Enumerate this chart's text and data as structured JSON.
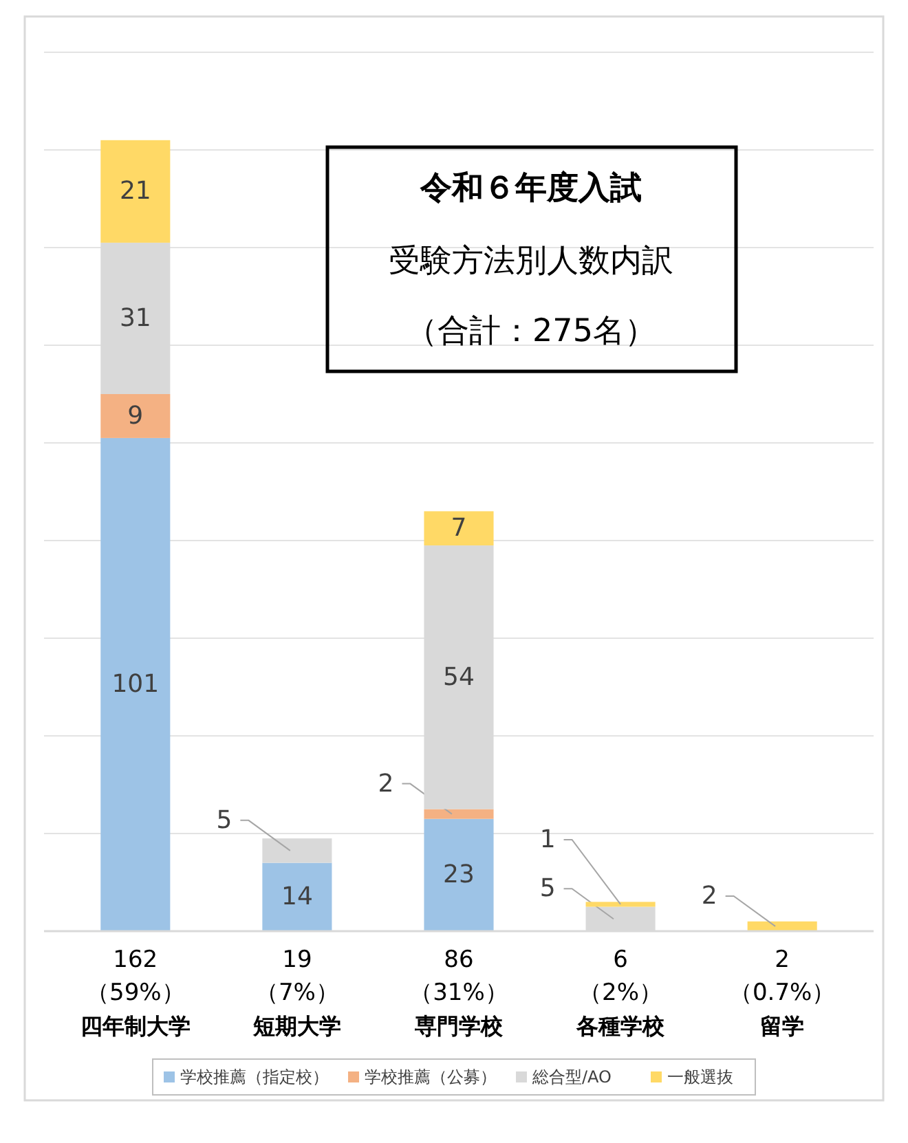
{
  "chart_data": {
    "type": "bar",
    "stacked": true,
    "title": "令和６年度入試",
    "subtitle": "受験方法別人数内訳",
    "annotations": [
      "（合計：275名）"
    ],
    "categories": [
      "四年制大学",
      "短期大学",
      "専門学校",
      "各種学校",
      "留学"
    ],
    "totals": [
      "162\n（59%）",
      "19\n（7%）",
      "86\n（31%）",
      "6\n（2%）",
      "2\n（0.7%）"
    ],
    "series": [
      {
        "name": "学校推薦（指定校）",
        "color": "#9dc3e6",
        "values": [
          101,
          14,
          23,
          0,
          0
        ],
        "value_labels": [
          "101",
          "14",
          "23",
          null,
          null
        ]
      },
      {
        "name": "学校推薦（公募）",
        "color": "#f4b183",
        "values": [
          9,
          0,
          2,
          0,
          0
        ],
        "value_labels": [
          "9",
          null,
          "2",
          null,
          null
        ]
      },
      {
        "name": "総合型/AO",
        "color": "#d9d9d9",
        "values": [
          31,
          5,
          54,
          5,
          0
        ],
        "value_labels": [
          "31",
          "5",
          "54",
          "5",
          null
        ]
      },
      {
        "name": "一般選抜",
        "color": "#ffd966",
        "values": [
          21,
          0,
          7,
          1,
          2
        ],
        "value_labels": [
          "21",
          null,
          "7",
          "1",
          "2"
        ]
      }
    ],
    "ylim": [
      0,
      180
    ],
    "yticks": [
      0,
      {
        "value": 20,
        "label": null
      },
      {
        "value": 40,
        "label": null
      },
      {
        "value": 60,
        "label": null
      },
      {
        "value": 80,
        "label": null
      },
      {
        "value": 100,
        "label": null
      },
      {
        "value": 120,
        "label": null
      },
      {
        "value": 140,
        "label": null
      },
      {
        "value": 160,
        "label": null
      },
      {
        "value": 180,
        "label": null
      }
    ],
    "tick_labels": "x",
    "grid": "y",
    "legend": "bottom"
  }
}
